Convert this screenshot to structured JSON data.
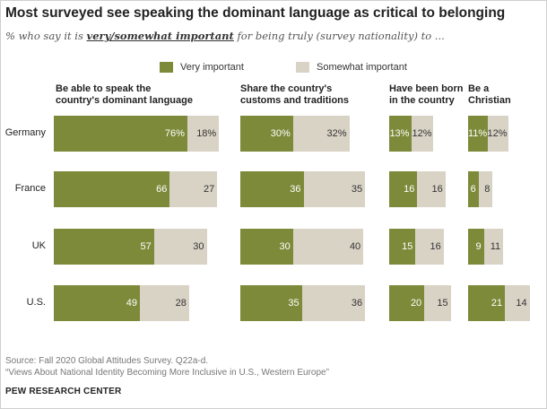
{
  "title": "Most surveyed see speaking the dominant language as critical to belonging",
  "subtitle": {
    "prefix": "% who say it is ",
    "emphasis": "very/somewhat important",
    "suffix": " for being truly (survey nationality) to ..."
  },
  "chart_data": {
    "type": "bar",
    "stacked": true,
    "orientation": "horizontal",
    "categories": [
      "Germany",
      "France",
      "UK",
      "U.S."
    ],
    "legend": [
      "Very important",
      "Somewhat important"
    ],
    "colors": {
      "very": "#7d8a3a",
      "somewhat": "#d9d3c6"
    },
    "panels": [
      {
        "title": "Be able to speak the country's dominant language",
        "title_lines": [
          "Be able to speak the",
          "country's dominant language"
        ],
        "very": [
          76,
          66,
          57,
          49
        ],
        "somewhat": [
          18,
          27,
          30,
          28
        ],
        "very_labels": [
          "76%",
          "66",
          "57",
          "49"
        ],
        "somewhat_labels": [
          "18%",
          "27",
          "30",
          "28"
        ]
      },
      {
        "title": "Share the country's customs and traditions",
        "title_lines": [
          "Share the country's",
          "customs and traditions"
        ],
        "very": [
          30,
          36,
          30,
          35
        ],
        "somewhat": [
          32,
          35,
          40,
          36
        ],
        "very_labels": [
          "30%",
          "36",
          "30",
          "35"
        ],
        "somewhat_labels": [
          "32%",
          "35",
          "40",
          "36"
        ]
      },
      {
        "title": "Have been born in the country",
        "title_lines": [
          "Have been born",
          "in the country"
        ],
        "very": [
          13,
          16,
          15,
          20
        ],
        "somewhat": [
          12,
          16,
          16,
          15
        ],
        "very_labels": [
          "13%",
          "16",
          "15",
          "20"
        ],
        "somewhat_labels": [
          "12%",
          "16",
          "16",
          "15"
        ]
      },
      {
        "title": "Be a Christian",
        "title_lines": [
          "Be a",
          "Christian"
        ],
        "very": [
          11,
          6,
          9,
          21
        ],
        "somewhat": [
          12,
          8,
          11,
          14
        ],
        "very_labels": [
          "11%",
          "6",
          "9",
          "21"
        ],
        "somewhat_labels": [
          "12%",
          "8",
          "11",
          "14"
        ]
      }
    ]
  },
  "source_lines": [
    "Source: Fall 2020 Global Attitudes Survey. Q22a-d.",
    "“Views About National Identity Becoming More Inclusive in U.S., Western Europe”"
  ],
  "brand": "PEW RESEARCH CENTER"
}
